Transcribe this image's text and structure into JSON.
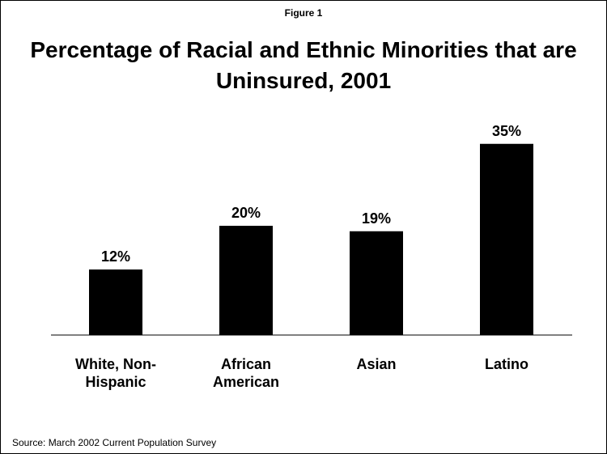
{
  "figure_label": "Figure 1",
  "source": "Source: March 2002 Current Population Survey",
  "colors": {
    "bar": "#000000",
    "axis": "#000000",
    "background": "#ffffff"
  },
  "chart_data": {
    "type": "bar",
    "title": "Percentage of Racial and Ethnic Minorities that are Uninsured, 2001",
    "categories": [
      [
        "White, Non-",
        "Hispanic"
      ],
      [
        "African",
        "American"
      ],
      [
        "Asian"
      ],
      [
        "Latino"
      ]
    ],
    "values": [
      12,
      20,
      19,
      35
    ],
    "value_labels": [
      "12%",
      "20%",
      "19%",
      "35%"
    ],
    "xlabel": "",
    "ylabel": "",
    "ylim": [
      0,
      40
    ],
    "grid": false,
    "legend": "none"
  }
}
